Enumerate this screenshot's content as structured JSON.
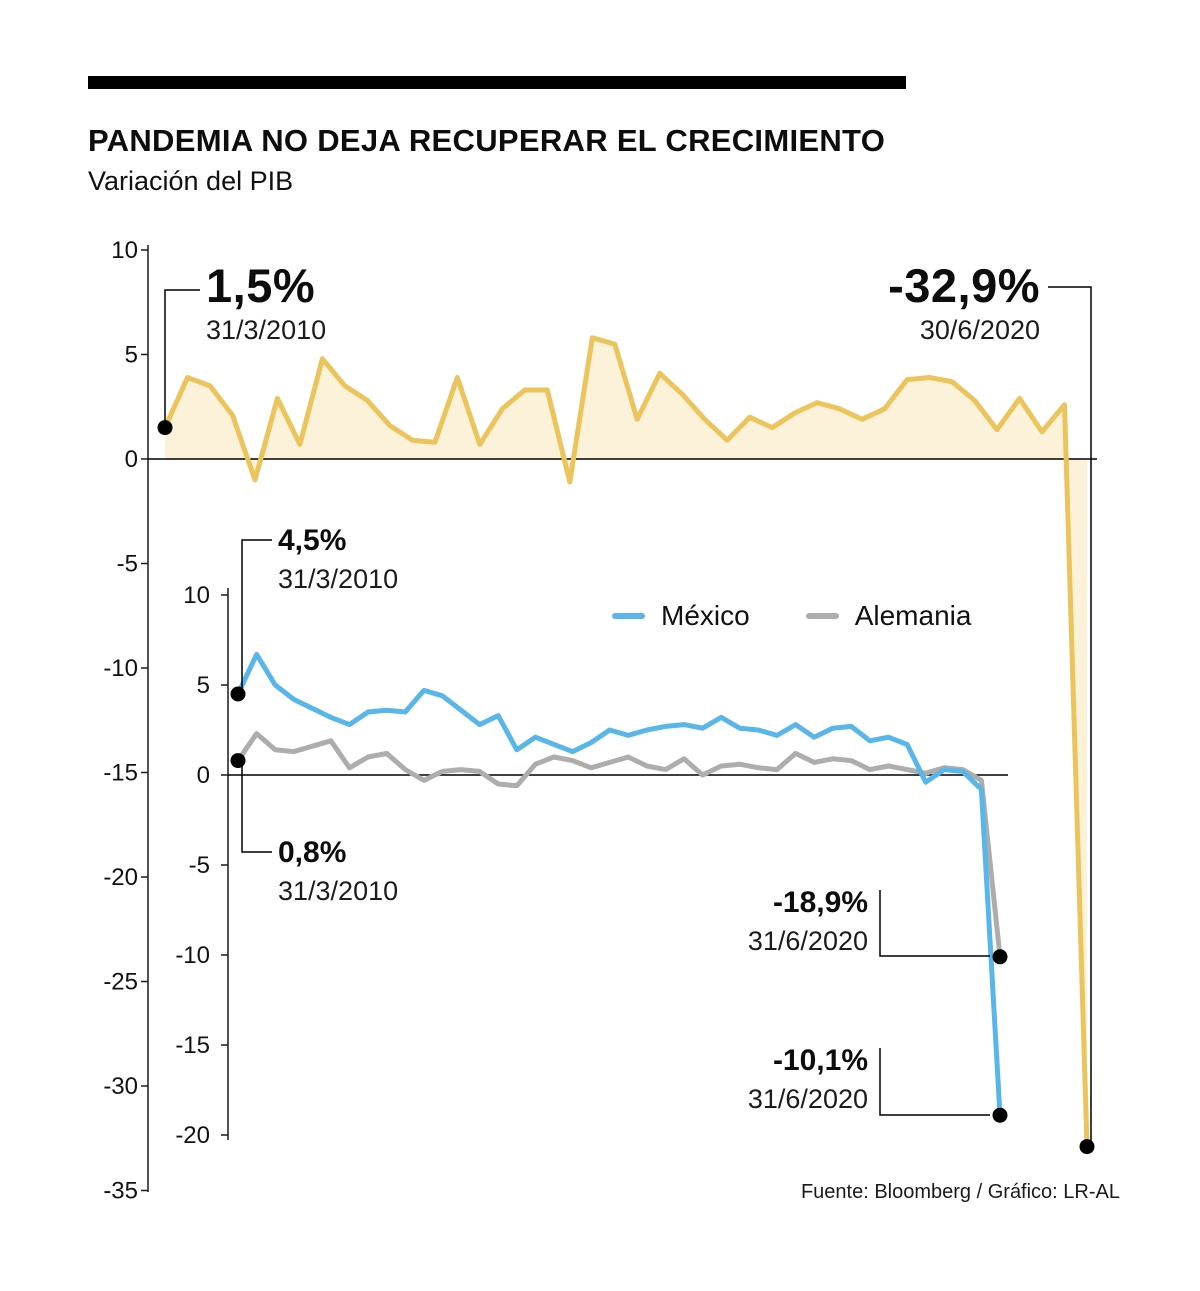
{
  "header": {
    "title": "PANDEMIA NO DEJA RECUPERAR EL CRECIMIENTO",
    "subtitle": "Variación del PIB"
  },
  "footer": {
    "source": "Fuente: Bloomberg / Gráfico: LR-AL"
  },
  "colors": {
    "main_line": "#ecc45c",
    "main_fill": "#fbf2d9",
    "mexico_line": "#58b6e8",
    "germany_line": "#adadad",
    "axis": "#1a1a1a",
    "dot": "#000000"
  },
  "chart_data": [
    {
      "type": "line",
      "title": "Variación del PIB",
      "x": {
        "start_date": "31/3/2010",
        "end_date": "30/6/2020"
      },
      "ylim": [
        -35,
        10
      ],
      "yticks": [
        "10",
        "5",
        "0",
        "-5",
        "-10",
        "-15",
        "-20",
        "-25",
        "-30",
        "-35"
      ],
      "grid": false,
      "legend_position": "none",
      "series": [
        {
          "key": "pib",
          "color": "#ecc45c",
          "fill": "#fbf2d9",
          "values": [
            1.5,
            3.9,
            3.5,
            2.1,
            -1.0,
            2.9,
            0.7,
            4.8,
            3.5,
            2.8,
            1.6,
            0.9,
            0.8,
            3.9,
            0.7,
            2.4,
            3.3,
            3.3,
            -1.1,
            5.8,
            5.5,
            1.9,
            4.1,
            3.1,
            1.9,
            0.9,
            2.0,
            1.5,
            2.2,
            2.7,
            2.4,
            1.9,
            2.4,
            3.8,
            3.9,
            3.7,
            2.8,
            1.4,
            2.9,
            1.3,
            2.6,
            -32.9
          ]
        }
      ],
      "annotations": [
        {
          "value": "1,5%",
          "date": "31/3/2010"
        },
        {
          "value": "-32,9%",
          "date": "30/6/2020"
        }
      ]
    },
    {
      "type": "line",
      "x": {
        "start_date": "31/3/2010",
        "end_date": "31/6/2020"
      },
      "ylim": [
        -20,
        10
      ],
      "yticks": [
        "10",
        "5",
        "0",
        "-5",
        "-10",
        "-15",
        "-20"
      ],
      "grid": false,
      "legend_position": "top-right-inside",
      "legend": [
        {
          "label": "México",
          "color": "#58b6e8"
        },
        {
          "label": "Alemania",
          "color": "#adadad"
        }
      ],
      "series": [
        {
          "key": "mexico",
          "name": "México",
          "color": "#58b6e8",
          "values": [
            4.5,
            6.7,
            5.0,
            4.2,
            3.7,
            3.2,
            2.8,
            3.5,
            3.6,
            3.5,
            4.7,
            4.4,
            3.6,
            2.8,
            3.3,
            1.4,
            2.1,
            1.7,
            1.3,
            1.8,
            2.5,
            2.2,
            2.5,
            2.7,
            2.8,
            2.6,
            3.2,
            2.6,
            2.5,
            2.2,
            2.8,
            2.1,
            2.6,
            2.7,
            1.9,
            2.1,
            1.7,
            -0.4,
            0.3,
            0.2,
            -0.8,
            -18.9
          ]
        },
        {
          "key": "alemania",
          "name": "Alemania",
          "color": "#adadad",
          "values": [
            0.8,
            2.3,
            1.4,
            1.3,
            1.6,
            1.9,
            0.4,
            1.0,
            1.2,
            0.3,
            -0.3,
            0.2,
            0.3,
            0.2,
            -0.5,
            -0.6,
            0.6,
            1.0,
            0.8,
            0.4,
            0.7,
            1.0,
            0.5,
            0.3,
            0.9,
            0.0,
            0.5,
            0.6,
            0.4,
            0.3,
            1.2,
            0.7,
            0.9,
            0.8,
            0.3,
            0.5,
            0.3,
            0.1,
            0.4,
            0.3,
            -0.3,
            -10.1
          ]
        }
      ],
      "annotations": [
        {
          "value": "4,5%",
          "date": "31/3/2010"
        },
        {
          "value": "0,8%",
          "date": "31/3/2010"
        },
        {
          "value": "-18,9%",
          "date": "31/6/2020"
        },
        {
          "value": "-10,1%",
          "date": "31/6/2020"
        }
      ]
    }
  ]
}
